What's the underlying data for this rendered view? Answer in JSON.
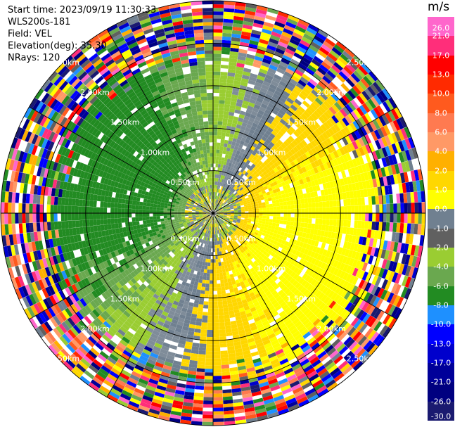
{
  "header": {
    "start_time": "Start time: 2023/09/19 11:30:33",
    "instrument": "WLS200s-181",
    "field": "Field: VEL",
    "elevation": "Elevation(deg): 35.30",
    "nrays": "NRays: 120"
  },
  "colorbar": {
    "unit": "m/s",
    "ticks": [
      "26.0",
      "21.0",
      "17.0",
      "13.0",
      "10.0",
      "8.0",
      "6.0",
      "4.0",
      "2.0",
      "1.0",
      "0.0",
      "-1.0",
      "-2.0",
      "-4.0",
      "-6.0",
      "-8.0",
      "-10.0",
      "-13.0",
      "-17.0",
      "-21.0",
      "-26.0",
      "-30.0"
    ],
    "colors": [
      "#ff66cc",
      "#ff2e7a",
      "#ff0000",
      "#ff2a00",
      "#ff5a1e",
      "#ff7a50",
      "#ff9966",
      "#ffb000",
      "#ffd700",
      "#ffff00",
      "#708090",
      "#606060",
      "#9acd32",
      "#6aa84f",
      "#228b22",
      "#1e90ff",
      "#0000ff",
      "#0000cc",
      "#000099",
      "#000080",
      "#1a1a70"
    ]
  },
  "range_labels": [
    "0.50km",
    "1.00km",
    "1.50km",
    "2.00km",
    "2.50km"
  ],
  "ppi": {
    "n_rays": 120,
    "max_range_km": 2.5,
    "ring_step_km": 0.5,
    "noise_range_km": 1.9,
    "velocity_pattern": "dipole"
  }
}
